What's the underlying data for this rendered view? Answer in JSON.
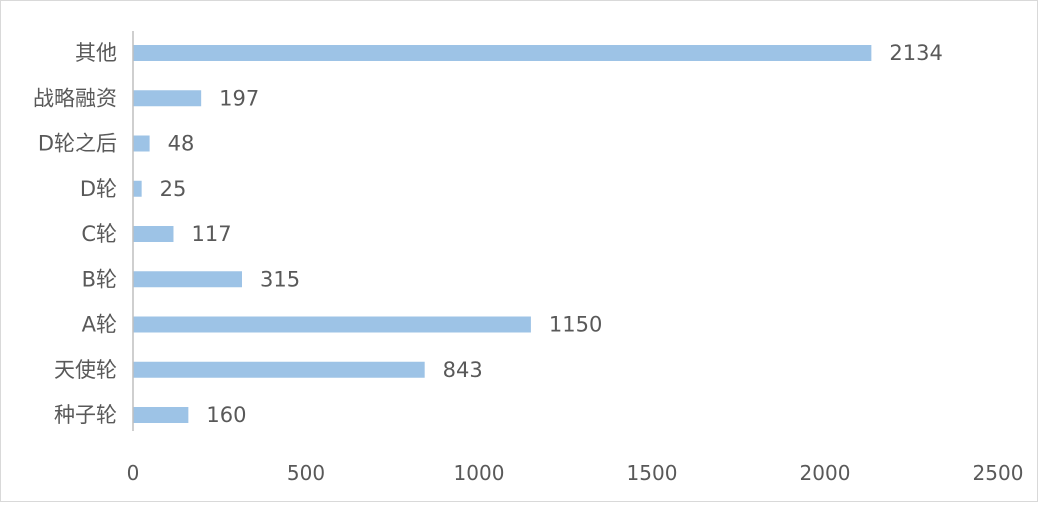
{
  "chart_data": {
    "type": "bar",
    "orientation": "horizontal",
    "title": "",
    "xlabel": "",
    "ylabel": "",
    "categories": [
      "其他",
      "战略融资",
      "D轮之后",
      "D轮",
      "C轮",
      "B轮",
      "A轮",
      "天使轮",
      "种子轮"
    ],
    "values": [
      2134,
      197,
      48,
      25,
      117,
      315,
      1150,
      843,
      160
    ],
    "xlim": [
      0,
      2500
    ],
    "xticks": [
      "0",
      "500",
      "1000",
      "1500",
      "2000",
      "2500"
    ],
    "grid": false,
    "legend": "none",
    "bar_color": "#9dc3e6",
    "axis_color": "#bfbfbf",
    "text_color": "#595959"
  }
}
